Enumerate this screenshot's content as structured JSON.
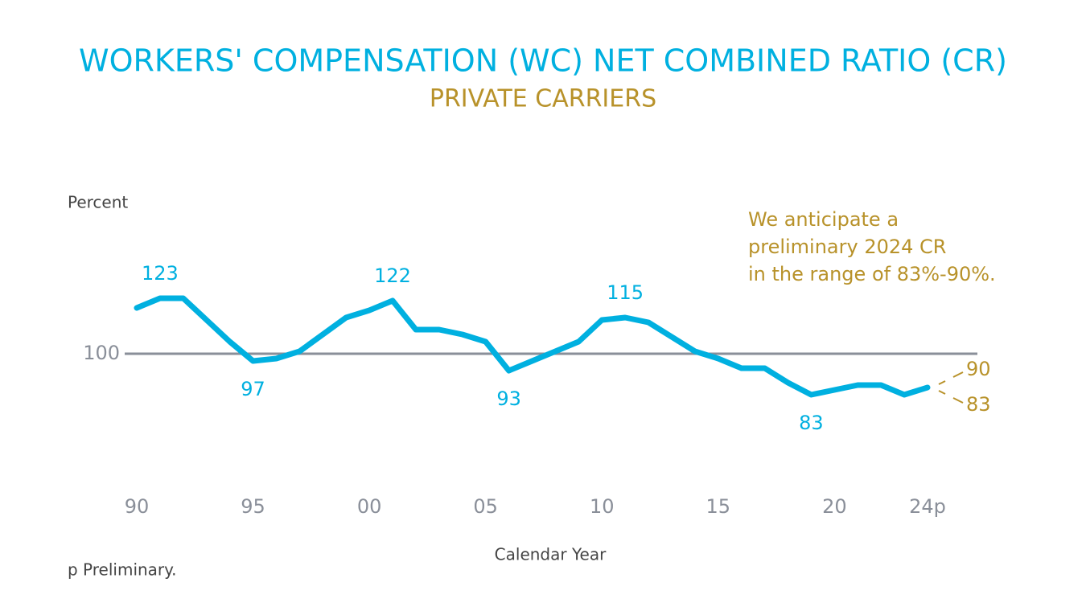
{
  "chart_data": {
    "type": "line",
    "title": "WORKERS' COMPENSATION (WC) NET COMBINED RATIO (CR)",
    "subtitle": "PRIVATE CARRIERS",
    "y_label": "Percent",
    "x_label": "Calendar Year",
    "footnote": "p Preliminary.",
    "annotation": [
      "We anticipate a",
      "preliminary 2024 CR",
      "in the range of 83%-90%."
    ],
    "x": [
      1990,
      1991,
      1992,
      1993,
      1994,
      1995,
      1996,
      1997,
      1998,
      1999,
      2000,
      2001,
      2002,
      2003,
      2004,
      2005,
      2006,
      2007,
      2008,
      2009,
      2010,
      2011,
      2012,
      2013,
      2014,
      2015,
      2016,
      2017,
      2018,
      2019,
      2020,
      2021,
      2022,
      2023,
      2024
    ],
    "series": [
      {
        "name": "Net combined ratio",
        "color": "#00b0e0",
        "values": [
          119,
          123,
          123,
          114,
          105,
          97,
          98,
          101,
          108,
          115,
          118,
          122,
          110,
          110,
          108,
          105,
          93,
          97,
          101,
          105,
          114,
          115,
          113,
          107,
          101,
          98,
          94,
          94,
          88,
          83,
          85,
          87,
          87,
          83,
          86
        ],
        "value_labels": [
          null,
          "123",
          null,
          null,
          null,
          "97",
          null,
          null,
          null,
          null,
          null,
          "122",
          null,
          null,
          null,
          null,
          "93",
          null,
          null,
          null,
          null,
          "115",
          null,
          null,
          null,
          null,
          null,
          null,
          null,
          "83",
          null,
          null,
          null,
          null,
          null
        ]
      }
    ],
    "preliminary_range": [
      90,
      83
    ],
    "range_color": "#b8922a",
    "xlim": [
      1990,
      2024
    ],
    "xticks": [
      {
        "value": 1990,
        "label": "90"
      },
      {
        "value": 1995,
        "label": "95"
      },
      {
        "value": 2000,
        "label": "00"
      },
      {
        "value": 2005,
        "label": "05"
      },
      {
        "value": 2010,
        "label": "10"
      },
      {
        "value": 2015,
        "label": "15"
      },
      {
        "value": 2020,
        "label": "20"
      },
      {
        "value": 2024,
        "label": "24p"
      }
    ],
    "ylim": [
      75,
      135
    ],
    "yticks": [
      100
    ],
    "grid": true
  }
}
